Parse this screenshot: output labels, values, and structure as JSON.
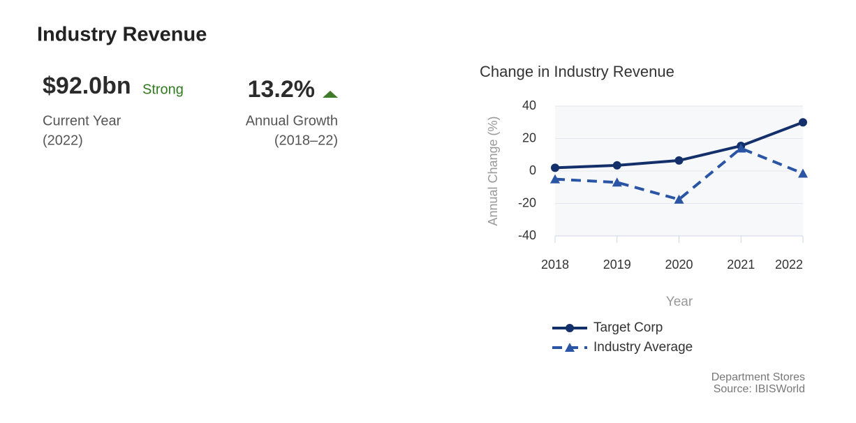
{
  "header": {
    "title": "Industry Revenue"
  },
  "kpis": [
    {
      "value": "$92.0bn",
      "rating": "Strong",
      "label": "Current Year",
      "period": "(2022)"
    },
    {
      "value": "13.2%",
      "label": "Annual Growth",
      "period": "(2018–22)"
    }
  ],
  "chart_data": {
    "type": "line",
    "title": "Change in Industry Revenue",
    "y_label": "Annual Change (%)",
    "x_label": "Year",
    "categories": [
      "2018",
      "2019",
      "2020",
      "2021",
      "2022"
    ],
    "series": [
      {
        "name": "Target Corp",
        "color": "#14306b",
        "marker": "circle",
        "dash": false,
        "values": [
          2,
          3.5,
          6.5,
          15.5,
          30
        ]
      },
      {
        "name": "Industry Average",
        "color": "#2a55a5",
        "marker": "triangle",
        "dash": true,
        "values": [
          -5,
          -7,
          -17.5,
          14,
          -1.5
        ]
      }
    ],
    "ylim": [
      -40,
      40
    ],
    "yticks": [
      -40,
      -20,
      0,
      20,
      40
    ],
    "grid": true,
    "legend": "bottom"
  },
  "footnote": {
    "industry": "Department Stores",
    "source": "Source: IBISWorld"
  }
}
